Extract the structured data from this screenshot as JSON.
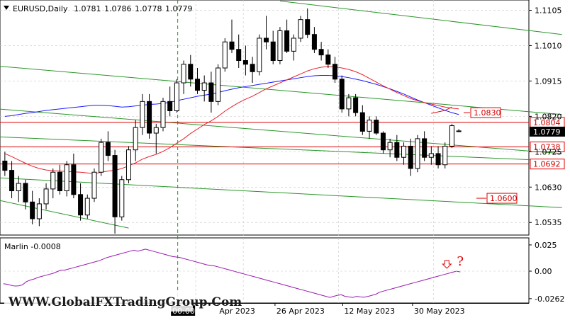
{
  "header": {
    "symbol_label": "EURUSD,Daily",
    "ohlc": {
      "open": "1.0781",
      "high": "1.0786",
      "low": "1.0778",
      "close": "1.0779"
    }
  },
  "indicator": {
    "label": "Marlin -0.0008"
  },
  "watermark": "WWW.GlobalFXTradingGroup.Com",
  "colors": {
    "bull": "#ffffff",
    "bear": "#000000",
    "ma_slow": "#1a1aff",
    "ma_fast": "#e8202a",
    "channel": "#2a962a",
    "level": "#e00000",
    "oscillator": "#9a1ab0",
    "grid": "#c8c8c8"
  },
  "chart_data": [
    {
      "type": "candlestick",
      "ylim": [
        1.0505,
        1.1125
      ],
      "y_ticks": [
        "1.1105",
        "1.1010",
        "1.0915",
        "1.0820",
        "1.0725",
        "1.0630",
        "1.0535"
      ],
      "x_ticks": [
        "00:00",
        "Apr 2023",
        "26 Apr 2023",
        "12 May 2023",
        "30 May 2023"
      ],
      "current_price": "1.0779",
      "levels": [
        {
          "label": "1.0804",
          "value": 1.0804,
          "boxed": true
        },
        {
          "label": "1.0738",
          "value": 1.0738,
          "boxed": true
        },
        {
          "label": "1.0692",
          "value": 1.0692,
          "boxed": true
        }
      ],
      "targets": [
        {
          "label": "1.0830",
          "value": 1.083
        },
        {
          "label": "1.0600",
          "value": 1.06
        }
      ],
      "candles": [
        [
          1.07,
          1.0725,
          1.066,
          1.0675
        ],
        [
          1.0675,
          1.07,
          1.06,
          1.062
        ],
        [
          1.062,
          1.066,
          1.059,
          1.064
        ],
        [
          1.064,
          1.065,
          1.057,
          1.059
        ],
        [
          1.059,
          1.062,
          1.053,
          1.0545
        ],
        [
          1.0545,
          1.06,
          1.0525,
          1.0585
        ],
        [
          1.0585,
          1.064,
          1.057,
          1.0625
        ],
        [
          1.0625,
          1.068,
          1.06,
          1.067
        ],
        [
          1.067,
          1.069,
          1.061,
          1.062
        ],
        [
          1.062,
          1.07,
          1.0605,
          1.069
        ],
        [
          1.069,
          1.072,
          1.06,
          1.061
        ],
        [
          1.061,
          1.064,
          1.054,
          1.0555
        ],
        [
          1.0555,
          1.061,
          1.0545,
          1.06
        ],
        [
          1.06,
          1.068,
          1.059,
          1.067
        ],
        [
          1.067,
          1.076,
          1.066,
          1.075
        ],
        [
          1.075,
          1.078,
          1.07,
          1.0715
        ],
        [
          1.0715,
          1.073,
          1.0505,
          1.055
        ],
        [
          1.055,
          1.066,
          1.054,
          1.065
        ],
        [
          1.065,
          1.074,
          1.064,
          1.073
        ],
        [
          1.073,
          1.081,
          1.07,
          1.079
        ],
        [
          1.079,
          1.088,
          1.077,
          1.086
        ],
        [
          1.086,
          1.088,
          1.076,
          1.0775
        ],
        [
          1.0775,
          1.08,
          1.072,
          1.079
        ],
        [
          1.079,
          1.087,
          1.078,
          1.086
        ],
        [
          1.086,
          1.09,
          1.082,
          1.0835
        ],
        [
          1.0835,
          1.092,
          1.083,
          1.091
        ],
        [
          1.091,
          1.097,
          1.088,
          1.096
        ],
        [
          1.096,
          1.0985,
          1.09,
          1.092
        ],
        [
          1.092,
          1.095,
          1.088,
          1.089
        ],
        [
          1.089,
          1.093,
          1.086,
          1.091
        ],
        [
          1.091,
          1.094,
          1.083,
          1.086
        ],
        [
          1.086,
          1.096,
          1.085,
          1.095
        ],
        [
          1.095,
          1.103,
          1.094,
          1.102
        ],
        [
          1.102,
          1.108,
          1.099,
          1.1
        ],
        [
          1.1,
          1.104,
          1.095,
          1.097
        ],
        [
          1.097,
          1.101,
          1.093,
          1.096
        ],
        [
          1.096,
          1.098,
          1.091,
          1.094
        ],
        [
          1.094,
          1.104,
          1.093,
          1.103
        ],
        [
          1.103,
          1.109,
          1.1,
          1.102
        ],
        [
          1.102,
          1.105,
          1.096,
          1.097
        ],
        [
          1.097,
          1.106,
          1.096,
          1.105
        ],
        [
          1.105,
          1.108,
          1.099,
          1.0995
        ],
        [
          1.0995,
          1.104,
          1.097,
          1.103
        ],
        [
          1.103,
          1.109,
          1.102,
          1.108
        ],
        [
          1.108,
          1.111,
          1.103,
          1.104
        ],
        [
          1.104,
          1.106,
          1.099,
          1.1
        ],
        [
          1.1,
          1.102,
          1.097,
          1.0985
        ],
        [
          1.0985,
          1.1,
          1.095,
          1.096
        ],
        [
          1.096,
          1.098,
          1.091,
          1.092
        ],
        [
          1.092,
          1.093,
          1.083,
          1.084
        ],
        [
          1.084,
          1.088,
          1.082,
          1.087
        ],
        [
          1.087,
          1.088,
          1.082,
          1.083
        ],
        [
          1.083,
          1.085,
          1.077,
          1.078
        ],
        [
          1.078,
          1.082,
          1.076,
          1.081
        ],
        [
          1.081,
          1.082,
          1.077,
          1.0775
        ],
        [
          1.0775,
          1.078,
          1.072,
          1.073
        ],
        [
          1.073,
          1.076,
          1.071,
          1.075
        ],
        [
          1.075,
          1.077,
          1.07,
          1.071
        ],
        [
          1.071,
          1.075,
          1.069,
          1.074
        ],
        [
          1.074,
          1.076,
          1.066,
          1.068
        ],
        [
          1.068,
          1.077,
          1.067,
          1.076
        ],
        [
          1.076,
          1.078,
          1.07,
          1.071
        ],
        [
          1.071,
          1.074,
          1.069,
          1.072
        ],
        [
          1.072,
          1.074,
          1.068,
          1.069
        ],
        [
          1.069,
          1.075,
          1.068,
          1.074
        ],
        [
          1.074,
          1.08,
          1.0735,
          1.0795
        ],
        [
          1.0781,
          1.0786,
          1.0778,
          1.0779
        ]
      ],
      "moving_averages": [
        {
          "values": [
            1.082,
            1.0822,
            1.0825,
            1.0828,
            1.083,
            1.0833,
            1.0836,
            1.0838,
            1.084,
            1.0842,
            1.0844,
            1.0846,
            1.0848,
            1.085,
            1.085,
            1.0849,
            1.0847,
            1.0845,
            1.0846,
            1.0848,
            1.085,
            1.0852,
            1.0853,
            1.0855,
            1.0858,
            1.0862,
            1.0866,
            1.087,
            1.0874,
            1.0877,
            1.088,
            1.0884,
            1.0889,
            1.0893,
            1.0897,
            1.09,
            1.0903,
            1.0906,
            1.0909,
            1.0912,
            1.0915,
            1.0918,
            1.0921,
            1.0924,
            1.0927,
            1.0929,
            1.093,
            1.093,
            1.0929,
            1.0927,
            1.0924,
            1.092,
            1.0916,
            1.0911,
            1.0906,
            1.09,
            1.0894,
            1.0887,
            1.088,
            1.0872,
            1.0864,
            1.0857,
            1.085,
            1.0843,
            1.0836,
            1.083,
            1.0825
          ]
        },
        {
          "values": [
            1.072,
            1.0712,
            1.0703,
            1.0694,
            1.0686,
            1.068,
            1.0676,
            1.0674,
            1.0673,
            1.0672,
            1.0671,
            1.067,
            1.0668,
            1.0666,
            1.067,
            1.0673,
            1.0675,
            1.068,
            1.0687,
            1.0695,
            1.0705,
            1.0712,
            1.0718,
            1.0726,
            1.0736,
            1.0748,
            1.076,
            1.0774,
            1.0786,
            1.0798,
            1.0808,
            1.082,
            1.0834,
            1.0846,
            1.0857,
            1.0866,
            1.0874,
            1.0884,
            1.0894,
            1.0902,
            1.091,
            1.0918,
            1.0926,
            1.0934,
            1.0942,
            1.0948,
            1.0952,
            1.0954,
            1.0953,
            1.095,
            1.0946,
            1.094,
            1.0932,
            1.0922,
            1.0912,
            1.0902,
            1.0893,
            1.0884,
            1.0876,
            1.0868,
            1.0862,
            1.0857,
            1.0853,
            1.0849,
            1.0845,
            1.0842,
            1.084
          ]
        }
      ]
    },
    {
      "type": "line",
      "ylim": [
        -0.029,
        0.029
      ],
      "y_ticks": [
        "0.025",
        "0.00",
        "-0.0262"
      ],
      "values": [
        -0.012,
        -0.0125,
        -0.0135,
        -0.0142,
        -0.014,
        -0.013,
        -0.01,
        -0.0085,
        -0.0075,
        -0.006,
        -0.005,
        -0.004,
        -0.003,
        -0.002,
        -0.0005,
        0.001,
        0.001,
        0.002,
        0.003,
        0.004,
        0.005,
        0.006,
        0.007,
        0.008,
        0.009,
        0.01,
        0.0115,
        0.013,
        0.014,
        0.015,
        0.016,
        0.017,
        0.018,
        0.019,
        0.02,
        0.019,
        0.02,
        0.021,
        0.02,
        0.019,
        0.018,
        0.017,
        0.016,
        0.015,
        0.014,
        0.0135,
        0.013,
        0.012,
        0.011,
        0.01,
        0.009,
        0.008,
        0.007,
        0.006,
        0.0055,
        0.005,
        0.004,
        0.003,
        0.002,
        0.001,
        0.0,
        -0.001,
        -0.002,
        -0.003,
        -0.004,
        -0.005,
        -0.006,
        -0.007,
        -0.008,
        -0.009,
        -0.01,
        -0.011,
        -0.012,
        -0.013,
        -0.014,
        -0.015,
        -0.016,
        -0.017,
        -0.018,
        -0.019,
        -0.02,
        -0.021,
        -0.022,
        -0.023,
        -0.024,
        -0.025,
        -0.024,
        -0.023,
        -0.0225,
        -0.024,
        -0.0245,
        -0.025,
        -0.024,
        -0.0245,
        -0.0248,
        -0.024,
        -0.023,
        -0.022,
        -0.02,
        -0.019,
        -0.018,
        -0.017,
        -0.016,
        -0.015,
        -0.014,
        -0.013,
        -0.012,
        -0.011,
        -0.01,
        -0.009,
        -0.008,
        -0.007,
        -0.006,
        -0.005,
        -0.004,
        -0.003,
        -0.002,
        -0.001,
        0.0,
        -0.0008
      ],
      "annotations": [
        "?"
      ]
    }
  ]
}
